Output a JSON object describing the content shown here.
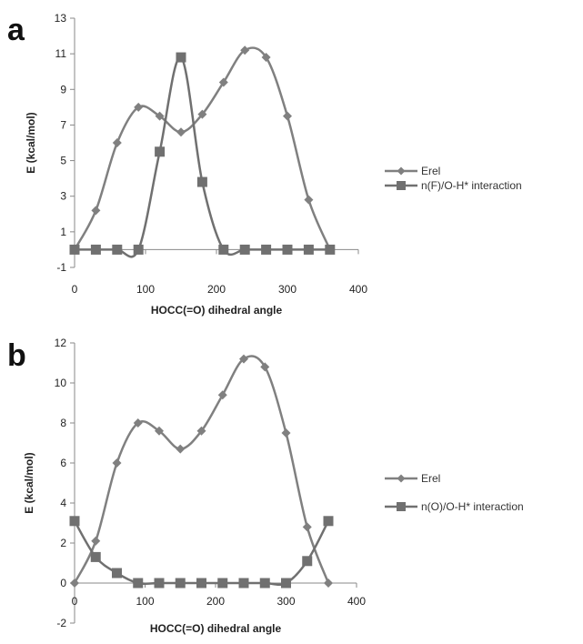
{
  "chart_data": [
    {
      "panel_label": "a",
      "type": "line",
      "xlabel": "HOCC(=O) dihedral angle",
      "ylabel": "E (kcal/mol)",
      "xlim": [
        0,
        400
      ],
      "ylim": [
        -1,
        13
      ],
      "xticks": [
        0,
        100,
        200,
        300,
        400
      ],
      "yticks": [
        -1,
        1,
        3,
        5,
        7,
        9,
        11,
        13
      ],
      "grid": false,
      "legend_position": "right",
      "series": [
        {
          "name": "Erel",
          "marker": "diamond",
          "color": "#808080",
          "x": [
            0,
            30,
            60,
            90,
            120,
            150,
            180,
            210,
            240,
            270,
            300,
            330,
            360
          ],
          "y": [
            0,
            2.2,
            6.0,
            8.0,
            7.5,
            6.6,
            7.6,
            9.4,
            11.2,
            10.8,
            7.5,
            2.8,
            0
          ]
        },
        {
          "name": "n(F)/O-H* interaction",
          "marker": "square",
          "color": "#707070",
          "x": [
            0,
            30,
            60,
            90,
            120,
            150,
            180,
            210,
            240,
            270,
            300,
            330,
            360
          ],
          "y": [
            0,
            0,
            0,
            0,
            5.5,
            10.8,
            3.8,
            0,
            0,
            0,
            0,
            0,
            0
          ]
        }
      ]
    },
    {
      "panel_label": "b",
      "type": "line",
      "xlabel": "HOCC(=O) dihedral angle",
      "ylabel": "E (kcal/mol)",
      "xlim": [
        0,
        400
      ],
      "ylim": [
        -2,
        12
      ],
      "xticks": [
        0,
        100,
        200,
        300,
        400
      ],
      "yticks": [
        -2,
        0,
        2,
        4,
        6,
        8,
        10,
        12
      ],
      "grid": false,
      "legend_position": "right",
      "series": [
        {
          "name": "Erel",
          "marker": "diamond",
          "color": "#808080",
          "x": [
            0,
            30,
            60,
            90,
            120,
            150,
            180,
            210,
            240,
            270,
            300,
            330,
            360
          ],
          "y": [
            0,
            2.1,
            6.0,
            8.0,
            7.6,
            6.7,
            7.6,
            9.4,
            11.2,
            10.8,
            7.5,
            2.8,
            0
          ]
        },
        {
          "name": "n(O)/O-H* interaction",
          "marker": "square",
          "color": "#707070",
          "x": [
            0,
            30,
            60,
            90,
            120,
            150,
            180,
            210,
            240,
            270,
            300,
            330,
            360
          ],
          "y": [
            3.1,
            1.3,
            0.5,
            0,
            0,
            0,
            0,
            0,
            0,
            0,
            0,
            1.1,
            3.1
          ]
        }
      ]
    }
  ]
}
